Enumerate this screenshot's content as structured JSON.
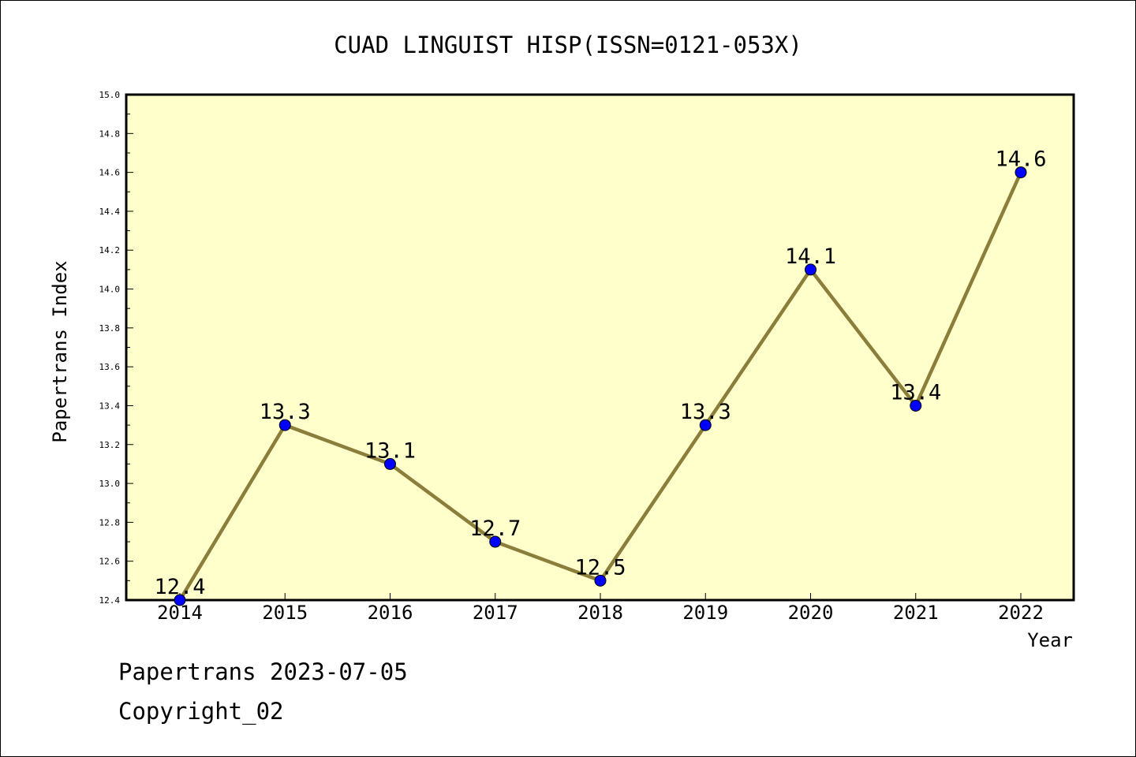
{
  "colors": {
    "plot_background": "#ffffcc",
    "line": "#8b7d3a",
    "marker": "#0000ff",
    "marker_edge": "#000000"
  },
  "chart_data": {
    "type": "line",
    "title": "CUAD LINGUIST HISP(ISSN=0121-053X)",
    "xlabel": "Year",
    "ylabel": "Papertrans Index",
    "x": [
      "2014",
      "2015",
      "2016",
      "2017",
      "2018",
      "2019",
      "2020",
      "2021",
      "2022"
    ],
    "series": [
      {
        "values": [
          12.4,
          13.3,
          13.1,
          12.7,
          12.5,
          13.3,
          14.1,
          13.4,
          14.6
        ],
        "labels": [
          "12.4",
          "13.3",
          "13.1",
          "12.7",
          "12.5",
          "13.3",
          "14.1",
          "13.4",
          "14.6"
        ]
      }
    ],
    "ylim": [
      12.4,
      15.0
    ],
    "yticks": [
      "12.4",
      "12.6",
      "12.8",
      "13.0",
      "13.2",
      "13.4",
      "13.6",
      "13.8",
      "14.0",
      "14.2",
      "14.4",
      "14.6",
      "14.8",
      "15.0"
    ],
    "grid": false,
    "legend": "none"
  },
  "footer": {
    "line1": "Papertrans 2023-07-05",
    "line2": "Copyright_02"
  }
}
